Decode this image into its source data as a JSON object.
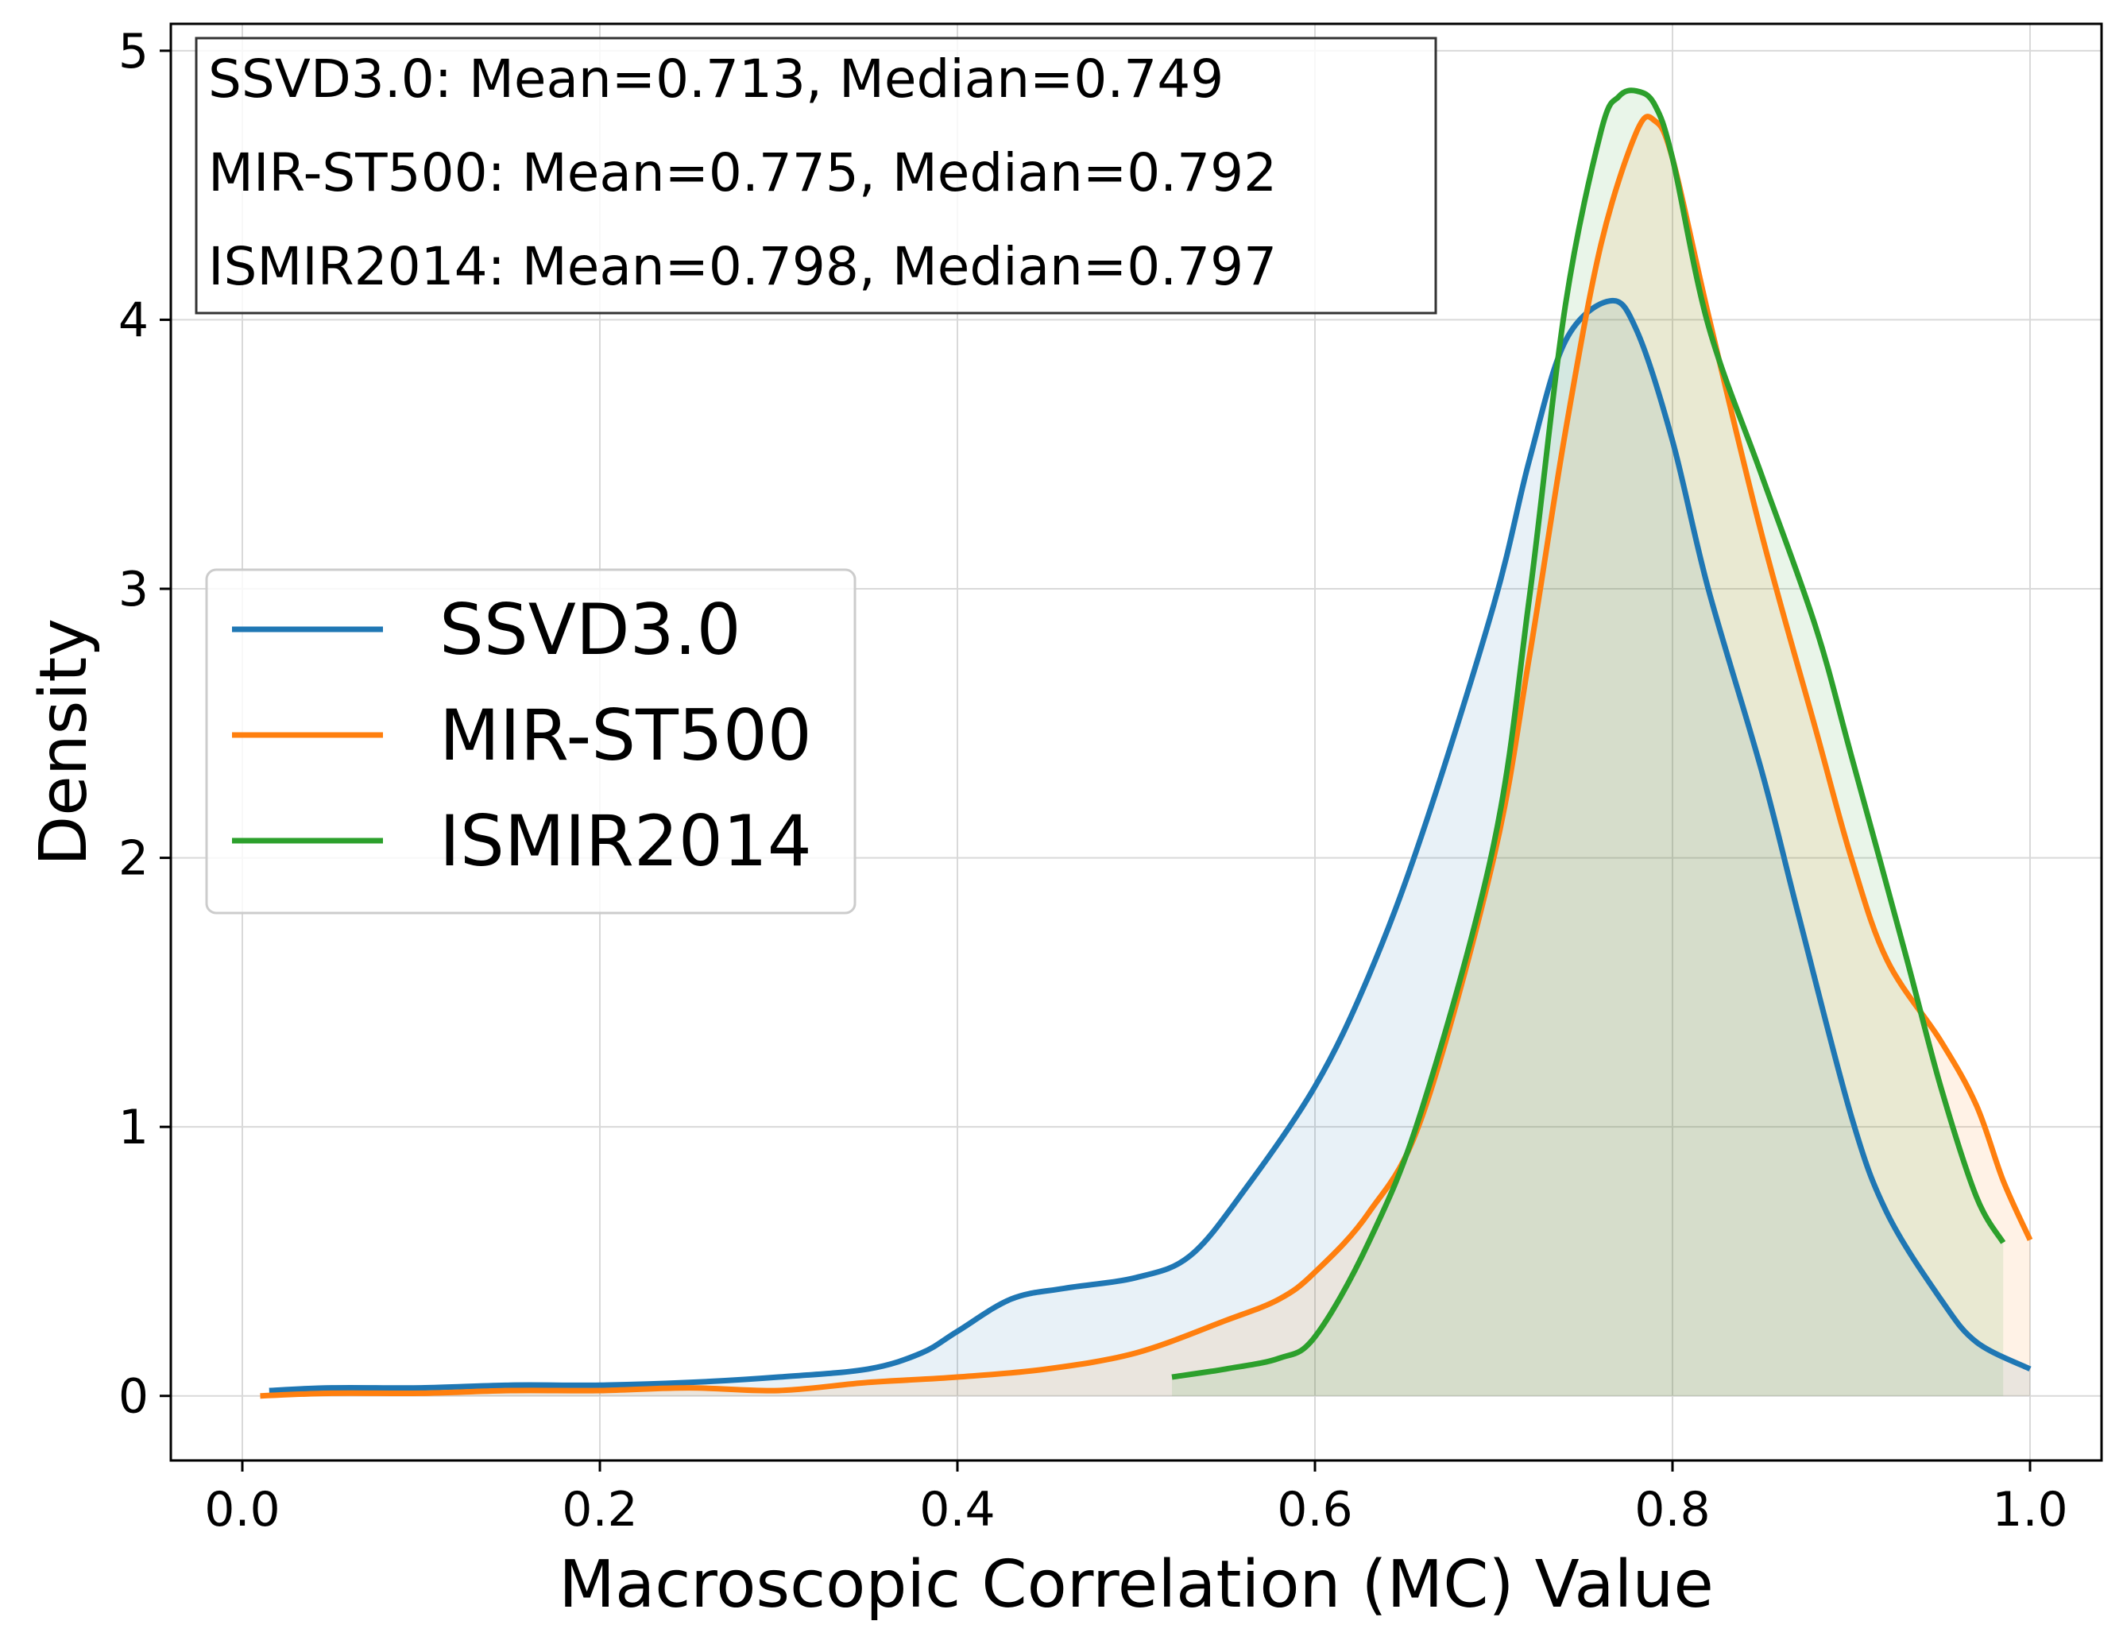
{
  "chart_data": {
    "type": "line",
    "title": "",
    "xlabel": "Macroscopic Correlation (MC) Value",
    "ylabel": "Density",
    "xlim": [
      -0.04,
      1.04
    ],
    "ylim": [
      -0.24,
      5.1
    ],
    "xticks": [
      0.0,
      0.2,
      0.4,
      0.6,
      0.8,
      1.0
    ],
    "xtick_labels": [
      "0.0",
      "0.2",
      "0.4",
      "0.6",
      "0.8",
      "1.0"
    ],
    "yticks": [
      0,
      1,
      2,
      3,
      4,
      5
    ],
    "ytick_labels": [
      "0",
      "1",
      "2",
      "3",
      "4",
      "5"
    ],
    "grid": true,
    "legend_position": "center-left",
    "stats_box": [
      "SSVD3.0: Mean=0.713, Median=0.749",
      "MIR-ST500: Mean=0.775, Median=0.792",
      "ISMIR2014: Mean=0.798, Median=0.797"
    ],
    "series": [
      {
        "name": "SSVD3.0",
        "color": "#1f77b4",
        "x": [
          0.015,
          0.05,
          0.1,
          0.15,
          0.2,
          0.25,
          0.3,
          0.35,
          0.38,
          0.4,
          0.43,
          0.46,
          0.5,
          0.53,
          0.56,
          0.6,
          0.63,
          0.66,
          0.7,
          0.72,
          0.74,
          0.765,
          0.78,
          0.8,
          0.82,
          0.85,
          0.87,
          0.9,
          0.92,
          0.95,
          0.97,
          1.0
        ],
        "y": [
          0.02,
          0.03,
          0.03,
          0.04,
          0.04,
          0.05,
          0.07,
          0.1,
          0.16,
          0.24,
          0.36,
          0.4,
          0.44,
          0.52,
          0.76,
          1.15,
          1.56,
          2.09,
          2.94,
          3.48,
          3.92,
          4.07,
          3.96,
          3.55,
          3.0,
          2.32,
          1.8,
          1.04,
          0.68,
          0.36,
          0.2,
          0.1
        ]
      },
      {
        "name": "MIR-ST500",
        "color": "#ff7f0e",
        "x": [
          0.01,
          0.05,
          0.1,
          0.15,
          0.2,
          0.25,
          0.3,
          0.35,
          0.4,
          0.45,
          0.5,
          0.55,
          0.58,
          0.6,
          0.63,
          0.66,
          0.7,
          0.72,
          0.74,
          0.76,
          0.78,
          0.79,
          0.8,
          0.82,
          0.85,
          0.88,
          0.9,
          0.92,
          0.95,
          0.97,
          0.985,
          1.0
        ],
        "y": [
          0.0,
          0.01,
          0.01,
          0.02,
          0.02,
          0.03,
          0.02,
          0.05,
          0.07,
          0.1,
          0.16,
          0.28,
          0.36,
          0.46,
          0.68,
          1.04,
          2.0,
          2.75,
          3.58,
          4.28,
          4.7,
          4.74,
          4.6,
          4.02,
          3.2,
          2.48,
          2.0,
          1.62,
          1.32,
          1.08,
          0.8,
          0.58
        ]
      },
      {
        "name": "ISMIR2014",
        "color": "#2ca02c",
        "x": [
          0.52,
          0.55,
          0.58,
          0.6,
          0.63,
          0.66,
          0.7,
          0.72,
          0.74,
          0.76,
          0.77,
          0.78,
          0.79,
          0.8,
          0.82,
          0.85,
          0.88,
          0.9,
          0.93,
          0.95,
          0.97,
          0.985
        ],
        "y": [
          0.07,
          0.1,
          0.14,
          0.22,
          0.57,
          1.07,
          2.05,
          2.97,
          4.05,
          4.7,
          4.83,
          4.85,
          4.8,
          4.6,
          3.98,
          3.42,
          2.86,
          2.38,
          1.65,
          1.15,
          0.74,
          0.57
        ]
      }
    ]
  }
}
